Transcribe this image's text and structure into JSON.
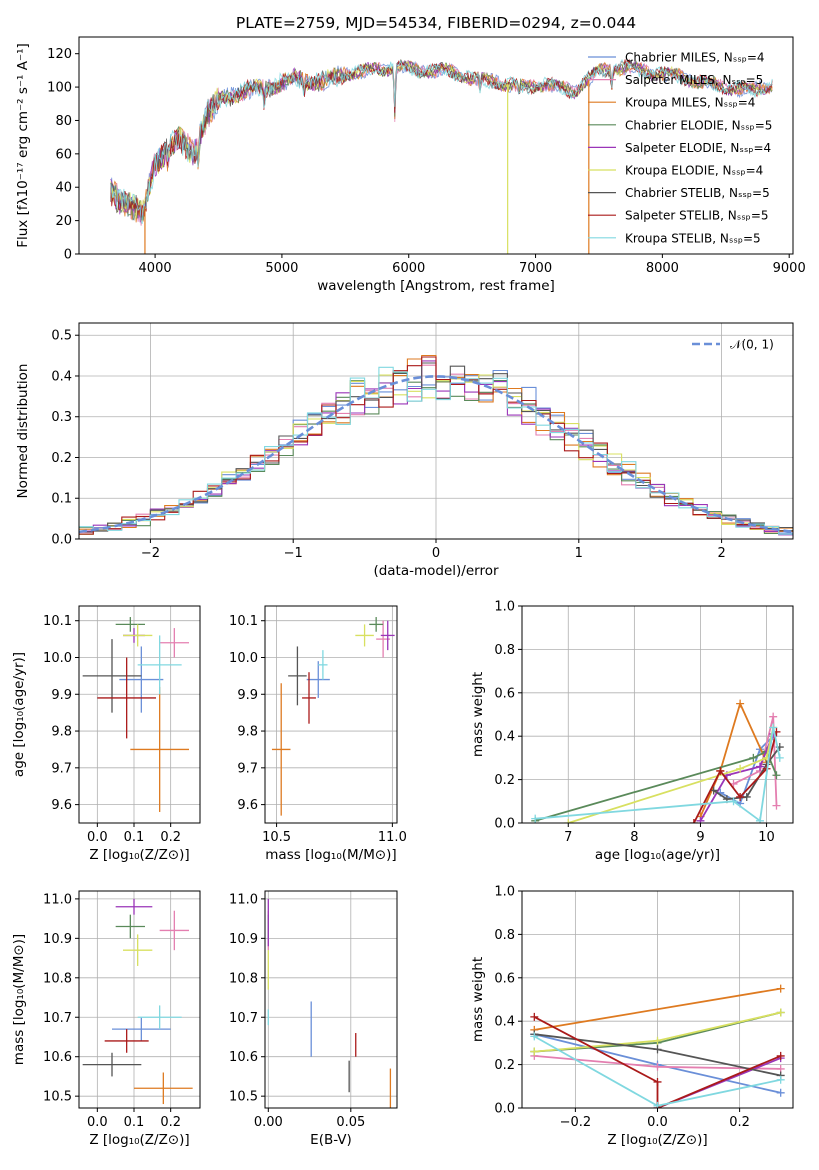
{
  "colors": {
    "chabrier_miles": "#6a8fd8",
    "salpeter_miles": "#e47fb0",
    "kroupa_miles": "#de7a20",
    "chabrier_elodie": "#5a8a5a",
    "salpeter_elodie": "#9a35b8",
    "kroupa_elodie": "#d8e060",
    "chabrier_stelib": "#555555",
    "salpeter_stelib": "#aa1a1a",
    "kroupa_stelib": "#80d8e0",
    "gaussian": "#6a8fd8"
  },
  "chart_data": [
    {
      "type": "line",
      "panel": "spectrum",
      "title": "PLATE=2759, MJD=54534, FIBERID=0294, z=0.044",
      "xlabel": "wavelength [Angstrom, rest frame]",
      "ylabel": "Flux [fλ10⁻¹⁷ erg cm⁻² s⁻¹ A⁻¹]",
      "xlim": [
        3400,
        9030
      ],
      "ylim": [
        0,
        130
      ],
      "xticks": [
        4000,
        5000,
        6000,
        7000,
        8000,
        9000
      ],
      "yticks": [
        0,
        20,
        40,
        60,
        80,
        100,
        120
      ],
      "legend_position": "top-right",
      "series": [
        {
          "name": "Chabrier MILES, Nₛₛₚ=4",
          "color_key": "chabrier_miles"
        },
        {
          "name": "Salpeter MILES, Nₛₛₚ=5",
          "color_key": "salpeter_miles"
        },
        {
          "name": "Kroupa MILES, Nₛₛₚ=4",
          "color_key": "kroupa_miles"
        },
        {
          "name": "Chabrier ELODIE, Nₛₛₚ=5",
          "color_key": "chabrier_elodie"
        },
        {
          "name": "Salpeter ELODIE, Nₛₛₚ=4",
          "color_key": "salpeter_elodie"
        },
        {
          "name": "Kroupa ELODIE, Nₛₛₚ=4",
          "color_key": "kroupa_elodie"
        },
        {
          "name": "Chabrier STELIB, Nₛₛₚ=5",
          "color_key": "chabrier_stelib"
        },
        {
          "name": "Salpeter STELIB, Nₛₛₚ=5",
          "color_key": "salpeter_stelib"
        },
        {
          "name": "Kroupa STELIB, Nₛₛₚ=5",
          "color_key": "kroupa_stelib"
        }
      ],
      "continuum": {
        "x": [
          3650,
          3700,
          3800,
          3900,
          4000,
          4100,
          4200,
          4300,
          4400,
          4500,
          4700,
          4900,
          5100,
          5300,
          5500,
          5700,
          5900,
          6100,
          6300,
          6500,
          6700,
          6900,
          7100,
          7300,
          7500,
          7700,
          7900,
          8100,
          8300,
          8500,
          8700,
          8870
        ],
        "y": [
          38,
          34,
          30,
          22,
          55,
          63,
          68,
          60,
          82,
          92,
          98,
          100,
          105,
          103,
          108,
          110,
          112,
          110,
          110,
          105,
          103,
          100,
          102,
          97,
          110,
          112,
          109,
          107,
          103,
          100,
          98,
          101
        ]
      },
      "dropouts": [
        {
          "x": 3920,
          "color_key": "kroupa_miles"
        },
        {
          "x": 6780,
          "color_key": "kroupa_elodie"
        },
        {
          "x": 7420,
          "color_key": "kroupa_miles"
        }
      ]
    },
    {
      "type": "bar",
      "panel": "residual_histogram",
      "xlabel": "(data-model)/error",
      "ylabel": "Normed distribution",
      "xlim": [
        -2.5,
        2.5
      ],
      "ylim": [
        0,
        0.53
      ],
      "xticks": [
        -2,
        -1,
        0,
        1,
        2
      ],
      "yticks": [
        0.0,
        0.1,
        0.2,
        0.3,
        0.4,
        0.5
      ],
      "bin_width": 0.1,
      "legend": "𝒩(0, 1)",
      "legend_position": "top-right",
      "gaussian": {
        "mean": 0,
        "sigma": 1
      }
    },
    {
      "type": "scatter",
      "panel": "age_vs_Z",
      "xlabel": "Z [log₁₀(Z/Z⊙)]",
      "ylabel": "age  [log₁₀(age/yr)]",
      "xlim": [
        -0.05,
        0.28
      ],
      "ylim": [
        9.55,
        10.14
      ],
      "xticks": [
        0.0,
        0.1,
        0.2
      ],
      "yticks": [
        9.6,
        9.7,
        9.8,
        9.9,
        10.0,
        10.1
      ],
      "points": [
        {
          "color_key": "chabrier_miles",
          "x": 0.12,
          "xerr": 0.06,
          "y": 9.94,
          "yerr": 0.09
        },
        {
          "color_key": "salpeter_miles",
          "x": 0.21,
          "xerr": 0.04,
          "y": 10.04,
          "yerr": 0.04
        },
        {
          "color_key": "kroupa_miles",
          "x": 0.17,
          "xerr": 0.08,
          "y": 9.75,
          "yerr": 0.17
        },
        {
          "color_key": "chabrier_elodie",
          "x": 0.09,
          "xerr": 0.04,
          "y": 10.09,
          "yerr": 0.02
        },
        {
          "color_key": "salpeter_elodie",
          "x": 0.1,
          "xerr": 0.03,
          "y": 10.06,
          "yerr": 0.02
        },
        {
          "color_key": "kroupa_elodie",
          "x": 0.11,
          "xerr": 0.04,
          "y": 10.06,
          "yerr": 0.03
        },
        {
          "color_key": "chabrier_stelib",
          "x": 0.04,
          "xerr": 0.08,
          "y": 9.95,
          "yerr": 0.1
        },
        {
          "color_key": "salpeter_stelib",
          "x": 0.08,
          "xerr": 0.08,
          "y": 9.89,
          "yerr": 0.11
        },
        {
          "color_key": "kroupa_stelib",
          "x": 0.17,
          "xerr": 0.06,
          "y": 9.98,
          "yerr": 0.08
        }
      ]
    },
    {
      "type": "scatter",
      "panel": "age_vs_mass",
      "xlabel": "mass [log₁₀(M/M⊙)]",
      "ylabel": "",
      "xlim": [
        10.45,
        11.02
      ],
      "ylim": [
        9.55,
        10.14
      ],
      "xticks": [
        10.5,
        11.0
      ],
      "yticks": [
        9.6,
        9.7,
        9.8,
        9.9,
        10.0,
        10.1
      ],
      "points": [
        {
          "color_key": "chabrier_miles",
          "x": 10.68,
          "xerr": 0.05,
          "y": 9.94,
          "yerr": 0.05
        },
        {
          "color_key": "salpeter_miles",
          "x": 10.96,
          "xerr": 0.03,
          "y": 10.05,
          "yerr": 0.05
        },
        {
          "color_key": "kroupa_miles",
          "x": 10.52,
          "xerr": 0.04,
          "y": 9.75,
          "yerr": 0.18
        },
        {
          "color_key": "chabrier_elodie",
          "x": 10.93,
          "xerr": 0.03,
          "y": 10.09,
          "yerr": 0.02
        },
        {
          "color_key": "salpeter_elodie",
          "x": 10.98,
          "xerr": 0.03,
          "y": 10.06,
          "yerr": 0.04
        },
        {
          "color_key": "kroupa_elodie",
          "x": 10.88,
          "xerr": 0.04,
          "y": 10.06,
          "yerr": 0.03
        },
        {
          "color_key": "chabrier_stelib",
          "x": 10.59,
          "xerr": 0.04,
          "y": 9.95,
          "yerr": 0.08
        },
        {
          "color_key": "salpeter_stelib",
          "x": 10.64,
          "xerr": 0.03,
          "y": 9.89,
          "yerr": 0.07
        },
        {
          "color_key": "kroupa_stelib",
          "x": 10.7,
          "xerr": 0.02,
          "y": 9.98,
          "yerr": 0.04
        }
      ]
    },
    {
      "type": "line",
      "panel": "mass_weight_vs_age",
      "xlabel": "age  [log₁₀(age/yr)]",
      "ylabel": "mass weight",
      "xlim": [
        6.3,
        10.4
      ],
      "ylim": [
        0,
        1.0
      ],
      "xticks": [
        7,
        8,
        9,
        10
      ],
      "yticks": [
        0.0,
        0.2,
        0.4,
        0.6,
        0.8,
        1.0
      ],
      "series": [
        {
          "color_key": "chabrier_miles",
          "x": [
            9.3,
            9.6,
            9.9,
            10.1
          ],
          "y": [
            0.14,
            0.09,
            0.34,
            0.4
          ]
        },
        {
          "color_key": "salpeter_miles",
          "x": [
            9.5,
            9.9,
            10.1,
            10.15
          ],
          "y": [
            0.18,
            0.24,
            0.49,
            0.08
          ]
        },
        {
          "color_key": "kroupa_miles",
          "x": [
            9.0,
            9.3,
            9.6,
            10.0
          ],
          "y": [
            0.03,
            0.24,
            0.55,
            0.28
          ]
        },
        {
          "color_key": "chabrier_elodie",
          "x": [
            6.5,
            9.8,
            10.0,
            10.15
          ],
          "y": [
            0.01,
            0.3,
            0.33,
            0.22
          ]
        },
        {
          "color_key": "salpeter_elodie",
          "x": [
            9.0,
            9.4,
            9.9,
            10.1
          ],
          "y": [
            0.01,
            0.22,
            0.26,
            0.41
          ]
        },
        {
          "color_key": "kroupa_elodie",
          "x": [
            7.0,
            9.6,
            10.0,
            10.1
          ],
          "y": [
            0.0,
            0.25,
            0.3,
            0.44
          ]
        },
        {
          "color_key": "chabrier_stelib",
          "x": [
            9.2,
            9.4,
            9.7,
            10.0,
            10.2
          ],
          "y": [
            0.15,
            0.11,
            0.12,
            0.27,
            0.35
          ]
        },
        {
          "color_key": "salpeter_stelib",
          "x": [
            8.9,
            9.3,
            9.6,
            10.0,
            10.15
          ],
          "y": [
            0.0,
            0.24,
            0.12,
            0.25,
            0.42
          ]
        },
        {
          "color_key": "kroupa_stelib",
          "x": [
            6.5,
            9.5,
            9.9,
            10.1,
            10.2
          ],
          "y": [
            0.02,
            0.1,
            0.01,
            0.44,
            0.3
          ]
        }
      ]
    },
    {
      "type": "scatter",
      "panel": "mass_vs_Z",
      "xlabel": "Z [log₁₀(Z/Z⊙)]",
      "ylabel": "mass [log₁₀(M/M⊙)]",
      "xlim": [
        -0.05,
        0.28
      ],
      "ylim": [
        10.47,
        11.02
      ],
      "xticks": [
        0.0,
        0.1,
        0.2
      ],
      "yticks": [
        10.5,
        10.6,
        10.7,
        10.8,
        10.9,
        11.0
      ],
      "points": [
        {
          "color_key": "chabrier_miles",
          "x": 0.12,
          "xerr": 0.08,
          "y": 10.67,
          "yerr": 0.03
        },
        {
          "color_key": "salpeter_miles",
          "x": 0.21,
          "xerr": 0.04,
          "y": 10.92,
          "yerr": 0.05
        },
        {
          "color_key": "kroupa_miles",
          "x": 0.18,
          "xerr": 0.08,
          "y": 10.52,
          "yerr": 0.04
        },
        {
          "color_key": "chabrier_elodie",
          "x": 0.09,
          "xerr": 0.04,
          "y": 10.93,
          "yerr": 0.03
        },
        {
          "color_key": "salpeter_elodie",
          "x": 0.1,
          "xerr": 0.05,
          "y": 10.98,
          "yerr": 0.02
        },
        {
          "color_key": "kroupa_elodie",
          "x": 0.11,
          "xerr": 0.04,
          "y": 10.87,
          "yerr": 0.04
        },
        {
          "color_key": "chabrier_stelib",
          "x": 0.04,
          "xerr": 0.08,
          "y": 10.58,
          "yerr": 0.03
        },
        {
          "color_key": "salpeter_stelib",
          "x": 0.08,
          "xerr": 0.06,
          "y": 10.64,
          "yerr": 0.03
        },
        {
          "color_key": "kroupa_stelib",
          "x": 0.17,
          "xerr": 0.06,
          "y": 10.7,
          "yerr": 0.03
        }
      ]
    },
    {
      "type": "scatter",
      "panel": "mass_vs_ebv",
      "xlabel": "E(B-V)",
      "ylabel": "",
      "xlim": [
        -0.002,
        0.078
      ],
      "ylim": [
        10.47,
        11.02
      ],
      "xticks": [
        0.0,
        0.05
      ],
      "yticks": [
        10.5,
        10.6,
        10.7,
        10.8,
        10.9,
        11.0
      ],
      "points": [
        {
          "color_key": "chabrier_miles",
          "x": 0.026,
          "y": 10.67,
          "yerr": 0.07
        },
        {
          "color_key": "salpeter_miles",
          "x": 0.0,
          "y": 10.92,
          "yerr": 0.05
        },
        {
          "color_key": "kroupa_miles",
          "x": 0.074,
          "y": 10.52,
          "yerr": 0.05
        },
        {
          "color_key": "chabrier_elodie",
          "x": 0.0,
          "y": 10.93,
          "yerr": 0.03
        },
        {
          "color_key": "salpeter_elodie",
          "x": 0.0,
          "y": 10.94,
          "yerr": 0.06
        },
        {
          "color_key": "kroupa_elodie",
          "x": 0.0,
          "y": 10.82,
          "yerr": 0.05
        },
        {
          "color_key": "chabrier_stelib",
          "x": 0.049,
          "y": 10.55,
          "yerr": 0.04
        },
        {
          "color_key": "salpeter_stelib",
          "x": 0.053,
          "y": 10.63,
          "yerr": 0.03
        },
        {
          "color_key": "kroupa_stelib",
          "x": 0.0,
          "y": 10.7,
          "yerr": 0.02
        }
      ]
    },
    {
      "type": "line",
      "panel": "mass_weight_vs_Z",
      "xlabel": "Z [log₁₀(Z/Z⊙)]",
      "ylabel": "mass weight",
      "xlim": [
        -0.33,
        0.33
      ],
      "ylim": [
        0,
        1.0
      ],
      "xticks": [
        -0.2,
        0.0,
        0.2
      ],
      "yticks": [
        0.0,
        0.2,
        0.4,
        0.6,
        0.8,
        1.0
      ],
      "series": [
        {
          "color_key": "chabrier_miles",
          "x": [
            -0.3,
            0.0,
            0.3
          ],
          "y": [
            0.34,
            0.2,
            0.07
          ]
        },
        {
          "color_key": "salpeter_miles",
          "x": [
            -0.3,
            0.0,
            0.3
          ],
          "y": [
            0.24,
            0.19,
            0.18
          ]
        },
        {
          "color_key": "kroupa_miles",
          "x": [
            -0.3,
            0.3
          ],
          "y": [
            0.36,
            0.55
          ]
        },
        {
          "color_key": "chabrier_elodie",
          "x": [
            -0.3,
            0.0,
            0.3
          ],
          "y": [
            0.26,
            0.3,
            0.44
          ]
        },
        {
          "color_key": "salpeter_elodie",
          "x": [
            0.0,
            0.3
          ],
          "y": [
            0.0,
            0.23
          ]
        },
        {
          "color_key": "kroupa_elodie",
          "x": [
            -0.3,
            0.0,
            0.3
          ],
          "y": [
            0.26,
            0.31,
            0.44
          ]
        },
        {
          "color_key": "chabrier_stelib",
          "x": [
            -0.3,
            0.0,
            0.3
          ],
          "y": [
            0.34,
            0.27,
            0.15
          ]
        },
        {
          "color_key": "salpeter_stelib",
          "x": [
            -0.3,
            0.0,
            0.0,
            0.3
          ],
          "y": [
            0.42,
            0.12,
            0.0,
            0.24
          ]
        },
        {
          "color_key": "kroupa_stelib",
          "x": [
            -0.3,
            0.0,
            0.3
          ],
          "y": [
            0.33,
            0.01,
            0.13
          ]
        }
      ]
    }
  ]
}
